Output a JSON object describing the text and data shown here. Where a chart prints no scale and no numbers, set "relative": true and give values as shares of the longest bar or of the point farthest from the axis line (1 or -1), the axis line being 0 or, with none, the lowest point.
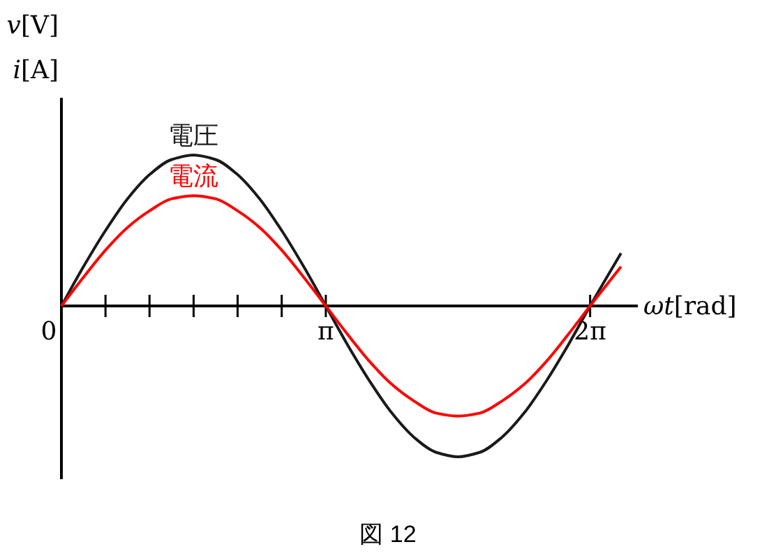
{
  "chart_data": {
    "type": "line",
    "relative": true,
    "xlabel": "ωt[rad]",
    "ylabel": "v[V]",
    "y2label": "i[A]",
    "annotations": [
      "図 12"
    ],
    "x": [
      0,
      0.262,
      0.524,
      0.785,
      1.047,
      1.309,
      1.571,
      1.833,
      2.094,
      2.356,
      2.618,
      2.88,
      3.142,
      3.403,
      3.665,
      3.927,
      4.189,
      4.451,
      4.712,
      4.974,
      5.236,
      5.498,
      5.76,
      6.021,
      6.283,
      6.65
    ],
    "xlim": [
      0,
      6.85
    ],
    "xticks": [
      {
        "value": 0,
        "label": "0"
      },
      {
        "value": 0.524,
        "label": null
      },
      {
        "value": 1.047,
        "label": null
      },
      {
        "value": 1.571,
        "label": null
      },
      {
        "value": 2.094,
        "label": null
      },
      {
        "value": 2.618,
        "label": null
      },
      {
        "value": 3.142,
        "label": "π"
      },
      {
        "value": 6.283,
        "label": "2π"
      }
    ],
    "series": [
      {
        "name": "電圧",
        "color": "#1a1a1a",
        "values": [
          0,
          0.26,
          0.5,
          0.71,
          0.87,
          0.97,
          1,
          0.97,
          0.87,
          0.71,
          0.5,
          0.26,
          0,
          -0.26,
          -0.5,
          -0.71,
          -0.87,
          -0.97,
          -1,
          -0.97,
          -0.87,
          -0.71,
          -0.5,
          -0.26,
          0,
          0.35
        ]
      },
      {
        "name": "電流",
        "color": "#ff0000",
        "values": [
          0,
          0.19,
          0.37,
          0.52,
          0.63,
          0.71,
          0.73,
          0.71,
          0.63,
          0.52,
          0.37,
          0.19,
          0,
          -0.19,
          -0.37,
          -0.52,
          -0.63,
          -0.71,
          -0.73,
          -0.71,
          -0.63,
          -0.52,
          -0.37,
          -0.19,
          0,
          0.26
        ]
      }
    ],
    "marker": "none",
    "line_style": "solid"
  }
}
